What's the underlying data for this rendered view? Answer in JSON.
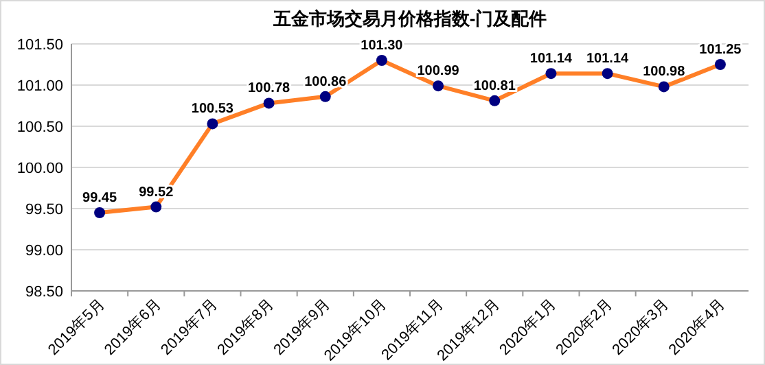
{
  "chart_data": {
    "type": "line",
    "title": "五金市场交易月价格指数-门及配件",
    "categories": [
      "2019年5月",
      "2019年6月",
      "2019年7月",
      "2019年8月",
      "2019年9月",
      "2019年10月",
      "2019年11月",
      "2019年12月",
      "2020年1月",
      "2020年2月",
      "2020年3月",
      "2020年4月"
    ],
    "series": [
      {
        "color": "#ff7f27",
        "values": [
          99.45,
          99.52,
          100.53,
          100.78,
          100.86,
          101.3,
          100.99,
          100.81,
          101.14,
          101.14,
          100.98,
          101.25
        ],
        "colors": [
          "#000080",
          "#000080",
          "#000080",
          "#000080",
          "#000080",
          "#000080",
          "#000080",
          "#000080",
          "#000080",
          "#000080",
          "#000080",
          "#000080"
        ],
        "value_labels": [
          "99.45",
          "99.52",
          "100.53",
          "100.78",
          "100.86",
          "101.30",
          "100.99",
          "100.81",
          "101.14",
          "101.14",
          "100.98",
          "101.25"
        ]
      }
    ],
    "marker": "circle",
    "line_style": "solid",
    "ylim": [
      98.5,
      101.5
    ],
    "yticks": [
      {
        "value": 98.5,
        "label": "98.50"
      },
      {
        "value": 99,
        "label": "99.00"
      },
      {
        "value": 99.5,
        "label": "99.50"
      },
      {
        "value": 100,
        "label": "100.00"
      },
      {
        "value": 100.5,
        "label": "100.50"
      },
      {
        "value": 101,
        "label": "101.00"
      },
      {
        "value": 101.5,
        "label": "101.50"
      }
    ],
    "grid": "y"
  }
}
